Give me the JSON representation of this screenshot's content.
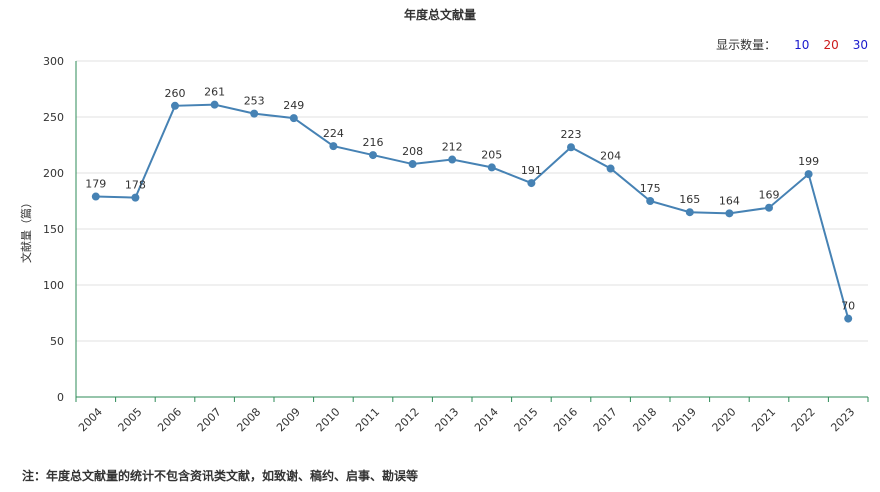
{
  "controls": {
    "count_label": "显示数量：",
    "options": [
      {
        "label": "10",
        "color": "#1a1acc"
      },
      {
        "label": "20",
        "color": "#cc1a1a"
      },
      {
        "label": "30",
        "color": "#1a1acc"
      }
    ]
  },
  "note": "注：年度总文献量的统计不包含资讯类文献，如致谢、稿约、启事、勘误等",
  "chart_data": {
    "type": "line",
    "title": "年度总文献量",
    "xlabel": "",
    "ylabel": "文献量（篇）",
    "ylim": [
      0,
      300
    ],
    "yticks": [
      0,
      50,
      100,
      150,
      200,
      250,
      300
    ],
    "grid": true,
    "line_color": "#4682b4",
    "x": [
      "2004",
      "2005",
      "2006",
      "2007",
      "2008",
      "2009",
      "2010",
      "2011",
      "2012",
      "2013",
      "2014",
      "2015",
      "2016",
      "2017",
      "2018",
      "2019",
      "2020",
      "2021",
      "2022",
      "2023"
    ],
    "values": [
      179,
      178,
      260,
      261,
      253,
      249,
      224,
      216,
      208,
      212,
      205,
      191,
      223,
      204,
      175,
      165,
      164,
      169,
      199,
      70
    ],
    "labels": [
      "179",
      "178",
      "260",
      "261",
      "253",
      "249",
      "224",
      "216",
      "208",
      "212",
      "205",
      "191",
      "223",
      "204",
      "175",
      "165",
      "164",
      "169",
      "199",
      "70"
    ]
  }
}
